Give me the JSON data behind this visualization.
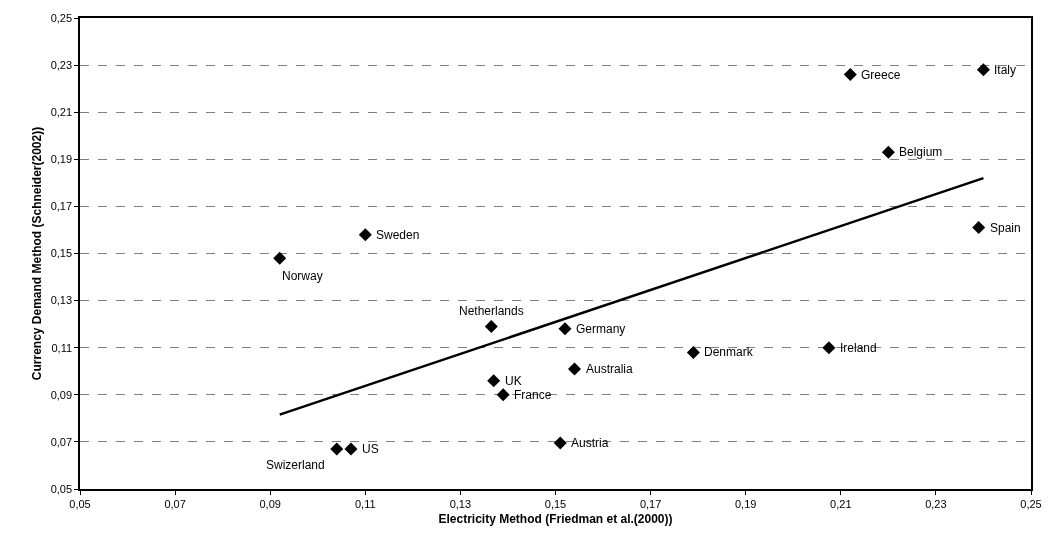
{
  "chart_data": {
    "type": "scatter",
    "xlabel": "Electricity Method (Friedman et al.(2000))",
    "ylabel": "Currency Demand Method (Schneider(2002))",
    "series": [
      {
        "color": "#000000",
        "marker": "diamond",
        "x": [
          0.092,
          0.11,
          0.104,
          0.107,
          0.1365,
          0.152,
          0.137,
          0.139,
          0.154,
          0.151,
          0.179,
          0.2075,
          0.212,
          0.24,
          0.22,
          0.239
        ],
        "values": [
          0.148,
          0.158,
          0.067,
          0.067,
          0.119,
          0.118,
          0.096,
          0.09,
          0.101,
          0.0695,
          0.108,
          0.11,
          0.226,
          0.228,
          0.193,
          0.161
        ]
      },
      {
        "type": "line",
        "color": "#000000",
        "marker": "none",
        "line_style": "solid",
        "x": [
          0.092,
          0.24
        ],
        "values": [
          0.0816,
          0.182
        ]
      }
    ],
    "annotations": [
      {
        "text": "Norway",
        "x": 0.092,
        "y": 0.148
      },
      {
        "text": "Sweden",
        "x": 0.11,
        "y": 0.158
      },
      {
        "text": "Swizerland",
        "x": 0.104,
        "y": 0.067
      },
      {
        "text": "US",
        "x": 0.107,
        "y": 0.067
      },
      {
        "text": "Netherlands",
        "x": 0.1365,
        "y": 0.119
      },
      {
        "text": "Germany",
        "x": 0.152,
        "y": 0.118
      },
      {
        "text": "UK",
        "x": 0.137,
        "y": 0.096
      },
      {
        "text": "France",
        "x": 0.139,
        "y": 0.09
      },
      {
        "text": "Australia",
        "x": 0.154,
        "y": 0.101
      },
      {
        "text": "Austria",
        "x": 0.151,
        "y": 0.0695
      },
      {
        "text": "Denmark",
        "x": 0.179,
        "y": 0.108
      },
      {
        "text": "Ireland",
        "x": 0.2075,
        "y": 0.11
      },
      {
        "text": "Greece",
        "x": 0.212,
        "y": 0.226
      },
      {
        "text": "Italy",
        "x": 0.24,
        "y": 0.228
      },
      {
        "text": "Belgium",
        "x": 0.22,
        "y": 0.193
      },
      {
        "text": "Spain",
        "x": 0.239,
        "y": 0.161
      }
    ],
    "xlim": [
      0.05,
      0.25
    ],
    "ylim": [
      0.05,
      0.25
    ],
    "xticks": [
      {
        "value": 0.05,
        "label": "0,05"
      },
      {
        "value": 0.07,
        "label": "0,07"
      },
      {
        "value": 0.09,
        "label": "0,09"
      },
      {
        "value": 0.11,
        "label": "0,11"
      },
      {
        "value": 0.13,
        "label": "0,13"
      },
      {
        "value": 0.15,
        "label": "0,15"
      },
      {
        "value": 0.17,
        "label": "0,17"
      },
      {
        "value": 0.19,
        "label": "0,19"
      },
      {
        "value": 0.21,
        "label": "0,21"
      },
      {
        "value": 0.23,
        "label": "0,23"
      },
      {
        "value": 0.25,
        "label": "0,25"
      }
    ],
    "yticks": [
      {
        "value": 0.05,
        "label": "0,05"
      },
      {
        "value": 0.07,
        "label": "0,07"
      },
      {
        "value": 0.09,
        "label": "0,09"
      },
      {
        "value": 0.11,
        "label": "0,11"
      },
      {
        "value": 0.13,
        "label": "0,13"
      },
      {
        "value": 0.15,
        "label": "0,15"
      },
      {
        "value": 0.17,
        "label": "0,17"
      },
      {
        "value": 0.19,
        "label": "0,19"
      },
      {
        "value": 0.21,
        "label": "0,21"
      },
      {
        "value": 0.23,
        "label": "0,23"
      },
      {
        "value": 0.25,
        "label": "0,25"
      }
    ],
    "grid": "y"
  }
}
